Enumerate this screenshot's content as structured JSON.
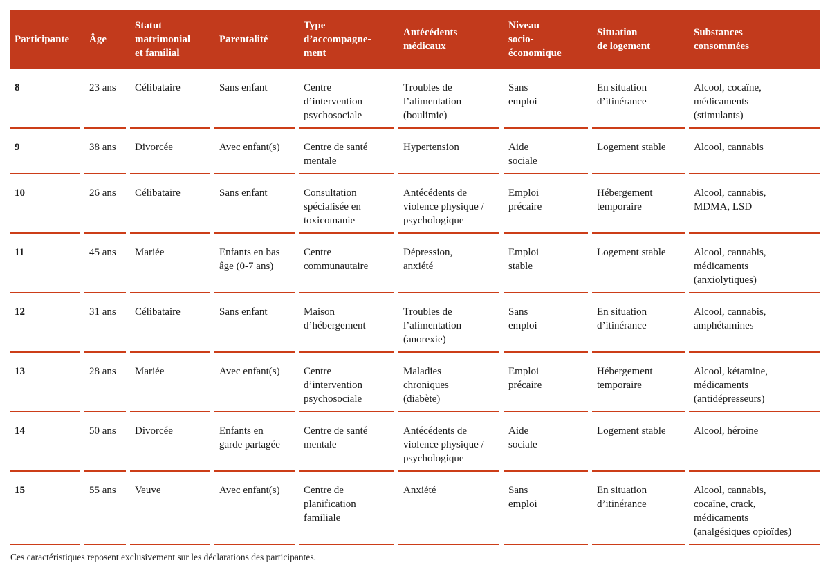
{
  "colors": {
    "header_bg": "#c23a1c",
    "rule": "#cc3d18",
    "text": "#1b1b1b",
    "header_text": "#ffffff"
  },
  "table": {
    "columns": [
      {
        "key": "participante",
        "label": "Participante"
      },
      {
        "key": "age",
        "label": "Âge"
      },
      {
        "key": "statut",
        "label": "Statut\nmatrimonial\net familial"
      },
      {
        "key": "parentalite",
        "label": "Parentalité"
      },
      {
        "key": "accompagnement",
        "label": "Type\nd’accompagne-\nment"
      },
      {
        "key": "antecedents",
        "label": "Antécédents\nmédicaux"
      },
      {
        "key": "socioeconomique",
        "label": "Niveau\nsocio-\néconomique"
      },
      {
        "key": "logement",
        "label": "Situation\nde logement"
      },
      {
        "key": "substances",
        "label": "Substances\nconsommées"
      }
    ],
    "rows": [
      {
        "cells": [
          "8",
          "23 ans",
          "Célibataire",
          "Sans enfant",
          "Centre\nd’intervention\npsychosociale",
          "Troubles de\nl’alimentation\n(boulimie)",
          "Sans\nemploi",
          "En situation\nd’itinérance",
          "Alcool, cocaïne,\nmédicaments\n(stimulants)"
        ]
      },
      {
        "cells": [
          "9",
          "38 ans",
          "Divorcée",
          "Avec enfant(s)",
          "Centre de santé\nmentale",
          "Hypertension",
          "Aide\nsociale",
          "Logement stable",
          "Alcool, cannabis"
        ]
      },
      {
        "cells": [
          "10",
          "26 ans",
          "Célibataire",
          "Sans enfant",
          "Consultation\nspécialisée en\ntoxicomanie",
          "Antécédents de\nviolence physique /\npsychologique",
          "Emploi\nprécaire",
          "Hébergement\ntemporaire",
          "Alcool, cannabis,\nMDMA, LSD"
        ]
      },
      {
        "cells": [
          "11",
          "45 ans",
          "Mariée",
          "Enfants en bas\nâge (0-7 ans)",
          "Centre\ncommunautaire",
          "Dépression,\nanxiété",
          "Emploi\nstable",
          "Logement stable",
          "Alcool, cannabis,\nmédicaments\n(anxiolytiques)"
        ]
      },
      {
        "cells": [
          "12",
          "31 ans",
          "Célibataire",
          "Sans enfant",
          "Maison\nd’hébergement",
          "Troubles de\nl’alimentation\n(anorexie)",
          "Sans\nemploi",
          "En situation\nd’itinérance",
          "Alcool, cannabis,\namphétamines"
        ]
      },
      {
        "cells": [
          "13",
          "28 ans",
          "Mariée",
          "Avec enfant(s)",
          "Centre\nd’intervention\npsychosociale",
          "Maladies\nchroniques\n(diabète)",
          "Emploi\nprécaire",
          "Hébergement\ntemporaire",
          "Alcool, kétamine,\nmédicaments\n(antidépresseurs)"
        ]
      },
      {
        "cells": [
          "14",
          "50 ans",
          "Divorcée",
          "Enfants en\ngarde partagée",
          "Centre de santé\nmentale",
          "Antécédents de\nviolence physique /\npsychologique",
          "Aide\nsociale",
          "Logement stable",
          "Alcool, héroïne"
        ]
      },
      {
        "cells": [
          "15",
          "55 ans",
          "Veuve",
          "Avec enfant(s)",
          "Centre de\nplanification\nfamiliale",
          "Anxiété",
          "Sans\nemploi",
          "En situation\nd’itinérance",
          "Alcool, cannabis,\ncocaïne, crack,\nmédicaments\n(analgésiques opioïdes)"
        ]
      }
    ]
  },
  "footnote": "Ces caractéristiques reposent exclusivement sur les déclarations des participantes."
}
